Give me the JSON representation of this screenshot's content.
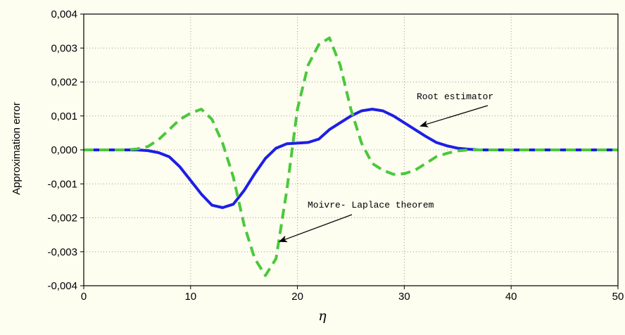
{
  "colors": {
    "background": "#fdfdf0",
    "root_estimator": "#1e1ee6",
    "moivre_laplace": "#4bc83c",
    "grid": "#9a9a9a"
  },
  "chart_data": {
    "type": "line",
    "title": "",
    "xlabel": "η",
    "ylabel": "Approximation error",
    "xlim": [
      0,
      50
    ],
    "ylim": [
      -0.004,
      0.004
    ],
    "grid": true,
    "x_ticks": [
      "0",
      "10",
      "20",
      "30",
      "40",
      "50"
    ],
    "y_ticks": [
      "-0,004",
      "-0,003",
      "-0,002",
      "-0,001",
      "0,000",
      "0,001",
      "0,002",
      "0,003",
      "0,004"
    ],
    "series": [
      {
        "key": "root",
        "style": "solid",
        "x": [
          0,
          5,
          6,
          7,
          8,
          9,
          10,
          11,
          12,
          13,
          14,
          15,
          16,
          17,
          18,
          19,
          20,
          21,
          22,
          23,
          24,
          25,
          26,
          27,
          28,
          29,
          30,
          31,
          32,
          33,
          34,
          35,
          36,
          37,
          38,
          40,
          50
        ],
        "y": [
          0,
          0,
          -2e-05,
          -8e-05,
          -0.0002,
          -0.0005,
          -0.0009,
          -0.0013,
          -0.00163,
          -0.0017,
          -0.0016,
          -0.0012,
          -0.0007,
          -0.00025,
          5e-05,
          0.00018,
          0.0002,
          0.00022,
          0.00032,
          0.0006,
          0.0008,
          0.001,
          0.00115,
          0.0012,
          0.00115,
          0.001,
          0.0008,
          0.0006,
          0.0004,
          0.00022,
          0.00012,
          5e-05,
          2e-05,
          0,
          0,
          0,
          0
        ]
      },
      {
        "key": "moivre",
        "style": "dashed",
        "x": [
          0,
          4,
          5,
          6,
          7,
          8,
          9,
          10,
          11,
          12,
          13,
          14,
          15,
          16,
          17,
          18,
          19,
          20,
          21,
          22,
          23,
          24,
          25,
          26,
          27,
          28,
          29,
          30,
          31,
          32,
          33,
          34,
          35,
          36,
          37,
          40,
          50
        ],
        "y": [
          0,
          0,
          3e-05,
          0.0001,
          0.0003,
          0.0006,
          0.0009,
          0.00108,
          0.0012,
          0.0009,
          0.0002,
          -0.0008,
          -0.0022,
          -0.0032,
          -0.0037,
          -0.0032,
          -0.0012,
          0.0012,
          0.0025,
          0.0031,
          0.0033,
          0.0025,
          0.0012,
          0.0002,
          -0.0004,
          -0.0006,
          -0.00072,
          -0.0007,
          -0.0006,
          -0.0004,
          -0.0002,
          -0.0001,
          -3e-05,
          0,
          0,
          0,
          0
        ]
      }
    ],
    "annotations": [
      {
        "key": "root",
        "text": "Root estimator",
        "arrow_to": [
          31.5,
          0.0007
        ]
      },
      {
        "key": "moivre",
        "text": "Moivre- Laplace theorem",
        "arrow_to": [
          18.3,
          -0.0027
        ]
      }
    ]
  }
}
